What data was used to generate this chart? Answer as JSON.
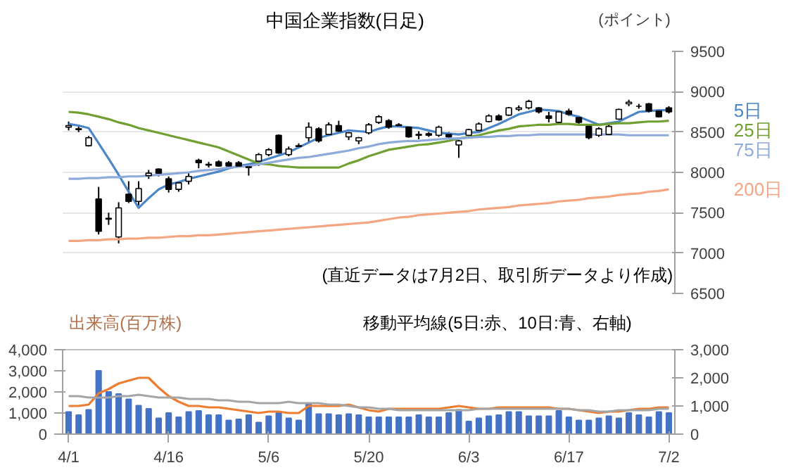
{
  "chart_data": [
    {
      "type": "candlestick",
      "title": "中国企業指数(日足)",
      "ylabel": "(ポイント)",
      "annotations": [
        "(直近データは7月2日、取引所データより作成)"
      ],
      "categories": [
        null,
        null,
        null,
        null,
        null,
        null,
        null,
        null,
        null,
        null,
        null,
        null,
        null,
        null,
        null,
        null,
        null,
        null,
        null,
        null,
        null,
        null,
        null,
        null,
        null,
        null,
        null,
        null,
        null,
        null,
        null,
        null,
        null,
        null,
        null,
        null,
        null,
        null,
        null,
        null,
        null,
        null,
        null,
        null,
        null,
        null,
        null,
        null,
        null,
        null,
        null,
        null,
        null,
        null,
        null,
        null,
        null,
        null,
        null,
        null,
        null
      ],
      "ohlc": [
        [
          8560,
          8630,
          8520,
          8580
        ],
        [
          8540,
          8570,
          8500,
          8530
        ],
        [
          8330,
          8450,
          8320,
          8430
        ],
        [
          7670,
          7820,
          7230,
          7270
        ],
        [
          7420,
          7500,
          7350,
          7430
        ],
        [
          7200,
          7630,
          7120,
          7560
        ],
        [
          7730,
          7890,
          7620,
          7640
        ],
        [
          7640,
          7890,
          7590,
          7800
        ],
        [
          7960,
          8030,
          7920,
          7990
        ],
        [
          8040,
          8050,
          7950,
          7990
        ],
        [
          7920,
          7950,
          7750,
          7790
        ],
        [
          7790,
          7890,
          7760,
          7870
        ],
        [
          7890,
          7990,
          7850,
          7950
        ],
        [
          8150,
          8170,
          8050,
          8120
        ],
        [
          8090,
          8130,
          8060,
          8100
        ],
        [
          8130,
          8150,
          8070,
          8080
        ],
        [
          8120,
          8140,
          8060,
          8080
        ],
        [
          8120,
          8140,
          8070,
          8080
        ],
        [
          8060,
          8080,
          7960,
          8070
        ],
        [
          8140,
          8240,
          8080,
          8220
        ],
        [
          8220,
          8300,
          8200,
          8280
        ],
        [
          8460,
          8470,
          8230,
          8240
        ],
        [
          8220,
          8320,
          8200,
          8290
        ],
        [
          8320,
          8360,
          8300,
          8330
        ],
        [
          8430,
          8620,
          8370,
          8560
        ],
        [
          8540,
          8560,
          8370,
          8390
        ],
        [
          8470,
          8620,
          8460,
          8590
        ],
        [
          8580,
          8640,
          8500,
          8510
        ],
        [
          8440,
          8500,
          8400,
          8490
        ],
        [
          8390,
          8440,
          8350,
          8430
        ],
        [
          8490,
          8610,
          8470,
          8590
        ],
        [
          8620,
          8710,
          8600,
          8690
        ],
        [
          8640,
          8660,
          8540,
          8560
        ],
        [
          8580,
          8610,
          8560,
          8590
        ],
        [
          8560,
          8570,
          8430,
          8440
        ],
        [
          8460,
          8510,
          8410,
          8470
        ],
        [
          8480,
          8500,
          8440,
          8460
        ],
        [
          8460,
          8580,
          8440,
          8560
        ],
        [
          8470,
          8500,
          8420,
          8440
        ],
        [
          8340,
          8400,
          8180,
          8390
        ],
        [
          8460,
          8540,
          8440,
          8530
        ],
        [
          8520,
          8620,
          8500,
          8600
        ],
        [
          8630,
          8720,
          8620,
          8700
        ],
        [
          8700,
          8720,
          8640,
          8650
        ],
        [
          8710,
          8810,
          8700,
          8800
        ],
        [
          8780,
          8830,
          8760,
          8800
        ],
        [
          8800,
          8900,
          8780,
          8880
        ],
        [
          8800,
          8810,
          8730,
          8750
        ],
        [
          8700,
          8750,
          8620,
          8670
        ],
        [
          8620,
          8760,
          8610,
          8750
        ],
        [
          8760,
          8790,
          8700,
          8720
        ],
        [
          8680,
          8700,
          8600,
          8620
        ],
        [
          8570,
          8590,
          8410,
          8430
        ],
        [
          8460,
          8560,
          8440,
          8540
        ],
        [
          8470,
          8600,
          8460,
          8570
        ],
        [
          8660,
          8790,
          8650,
          8780
        ],
        [
          8850,
          8900,
          8820,
          8870
        ],
        [
          8820,
          8850,
          8790,
          8820
        ],
        [
          8850,
          8860,
          8740,
          8760
        ],
        [
          8760,
          8770,
          8680,
          8690
        ],
        [
          8800,
          8820,
          8730,
          8750
        ]
      ],
      "series": [
        {
          "type": "line",
          "name": "5日",
          "color": "#4a86c8",
          "values": [
            8600,
            8580,
            8550,
            8360,
            8170,
            7970,
            7760,
            7560,
            7680,
            7790,
            7850,
            7880,
            7920,
            7950,
            7980,
            8010,
            8050,
            8080,
            8100,
            8130,
            8170,
            8210,
            8250,
            8310,
            8370,
            8430,
            8460,
            8490,
            8520,
            8510,
            8500,
            8540,
            8570,
            8570,
            8560,
            8550,
            8520,
            8490,
            8480,
            8470,
            8490,
            8500,
            8550,
            8600,
            8660,
            8720,
            8750,
            8780,
            8770,
            8760,
            8720,
            8690,
            8640,
            8590,
            8610,
            8630,
            8690,
            8750,
            8760,
            8770,
            8770
          ]
        },
        {
          "type": "line",
          "name": "25日",
          "color": "#70a032",
          "values": [
            8750,
            8740,
            8720,
            8690,
            8660,
            8620,
            8590,
            8550,
            8520,
            8490,
            8460,
            8430,
            8400,
            8370,
            8340,
            8310,
            8260,
            8210,
            8160,
            8110,
            8100,
            8080,
            8070,
            8060,
            8060,
            8060,
            8060,
            8060,
            8110,
            8150,
            8200,
            8240,
            8280,
            8300,
            8320,
            8340,
            8350,
            8370,
            8390,
            8420,
            8440,
            8460,
            8490,
            8520,
            8540,
            8570,
            8580,
            8590,
            8590,
            8600,
            8600,
            8590,
            8590,
            8590,
            8600,
            8610,
            8610,
            8620,
            8630,
            8630,
            8640
          ]
        },
        {
          "type": "line",
          "name": "75日",
          "color": "#8eaadb",
          "values": [
            7920,
            7920,
            7930,
            7930,
            7940,
            7940,
            7950,
            7950,
            7960,
            7970,
            7980,
            7990,
            8000,
            8020,
            8030,
            8040,
            8060,
            8070,
            8080,
            8100,
            8120,
            8140,
            8160,
            8180,
            8190,
            8210,
            8230,
            8250,
            8270,
            8300,
            8320,
            8350,
            8370,
            8380,
            8390,
            8390,
            8400,
            8410,
            8420,
            8420,
            8430,
            8440,
            8440,
            8450,
            8450,
            8460,
            8460,
            8470,
            8470,
            8470,
            8470,
            8470,
            8470,
            8470,
            8470,
            8470,
            8460,
            8460,
            8460,
            8460,
            8460
          ]
        },
        {
          "type": "line",
          "name": "200日",
          "color": "#f4a582",
          "values": [
            7150,
            7150,
            7160,
            7160,
            7170,
            7170,
            7180,
            7180,
            7190,
            7190,
            7200,
            7210,
            7210,
            7220,
            7220,
            7230,
            7240,
            7250,
            7260,
            7270,
            7280,
            7290,
            7300,
            7310,
            7320,
            7330,
            7340,
            7350,
            7360,
            7370,
            7380,
            7400,
            7420,
            7440,
            7450,
            7470,
            7480,
            7490,
            7500,
            7510,
            7520,
            7540,
            7550,
            7560,
            7570,
            7590,
            7600,
            7610,
            7620,
            7640,
            7650,
            7660,
            7680,
            7690,
            7700,
            7720,
            7730,
            7740,
            7760,
            7770,
            7790
          ]
        }
      ],
      "ylim": [
        6500,
        9500
      ],
      "yticks": [
        6500,
        7000,
        7500,
        8000,
        8500,
        9000,
        9500
      ],
      "grid": "y",
      "tick_labels": "y"
    },
    {
      "type": "bar",
      "ylabel": "出来高(百万株)",
      "annotations": [
        "移動平均線(5日:赤、10日:青、右軸)"
      ],
      "categories": [
        "4/1",
        null,
        null,
        null,
        null,
        null,
        null,
        null,
        null,
        null,
        "4/16",
        null,
        null,
        null,
        null,
        null,
        null,
        null,
        null,
        null,
        "5/6",
        null,
        null,
        null,
        null,
        null,
        null,
        null,
        null,
        null,
        "5/20",
        null,
        null,
        null,
        null,
        null,
        null,
        null,
        null,
        null,
        "6/3",
        null,
        null,
        null,
        null,
        null,
        null,
        null,
        null,
        null,
        "6/17",
        null,
        null,
        null,
        null,
        null,
        null,
        null,
        null,
        null,
        "7/2"
      ],
      "color": "#4472c4",
      "values": [
        1050,
        900,
        1150,
        3000,
        2000,
        1900,
        1650,
        1350,
        1200,
        750,
        1000,
        800,
        1050,
        1100,
        900,
        900,
        650,
        700,
        900,
        550,
        850,
        1000,
        750,
        650,
        1450,
        950,
        950,
        900,
        950,
        900,
        800,
        800,
        800,
        800,
        800,
        900,
        800,
        800,
        1000,
        1150,
        600,
        750,
        850,
        900,
        1050,
        1050,
        850,
        850,
        850,
        1100,
        800,
        650,
        650,
        750,
        850,
        750,
        1000,
        900,
        800,
        1050,
        1000
      ],
      "series": [
        {
          "type": "line",
          "color": "#ed7d31",
          "axis": "y2",
          "values": [
            1000,
            1000,
            1050,
            1450,
            1600,
            1800,
            1900,
            2000,
            2000,
            1650,
            1350,
            1150,
            1000,
            1000,
            950,
            950,
            900,
            850,
            800,
            750,
            800,
            800,
            750,
            750,
            1000,
            1000,
            1000,
            1000,
            1050,
            950,
            850,
            800,
            900,
            900,
            900,
            900,
            900,
            900,
            950,
            1000,
            950,
            900,
            900,
            950,
            950,
            950,
            950,
            950,
            950,
            900,
            900,
            850,
            800,
            750,
            800,
            800,
            850,
            900,
            900,
            950,
            950
          ]
        },
        {
          "type": "line",
          "color": "#a5a5a5",
          "axis": "y2",
          "values": [
            1350,
            1350,
            1300,
            1300,
            1300,
            1350,
            1350,
            1400,
            1350,
            1300,
            1300,
            1300,
            1250,
            1250,
            1250,
            1200,
            1200,
            1150,
            1150,
            1100,
            1100,
            1100,
            1150,
            1100,
            1100,
            1100,
            1050,
            1050,
            1000,
            950,
            950,
            900,
            900,
            850,
            850,
            850,
            850,
            850,
            850,
            850,
            850,
            900,
            900,
            900,
            900,
            900,
            900,
            900,
            900,
            900,
            900,
            850,
            850,
            800,
            800,
            850,
            850,
            850,
            850,
            900,
            900
          ]
        }
      ],
      "ylim": [
        0,
        4000
      ],
      "yticks": [
        0,
        {
          "value": 1000,
          "label": "1,000"
        },
        {
          "value": 2000,
          "label": "2,000"
        },
        {
          "value": 3000,
          "label": "3,000"
        },
        {
          "value": 4000,
          "label": "4,000"
        }
      ],
      "y2lim": [
        0,
        3000
      ],
      "y2ticks": [
        0,
        {
          "value": 1000,
          "label": "1,000"
        },
        {
          "value": 2000,
          "label": "2,000"
        },
        {
          "value": 3000,
          "label": "3,000"
        }
      ]
    }
  ]
}
